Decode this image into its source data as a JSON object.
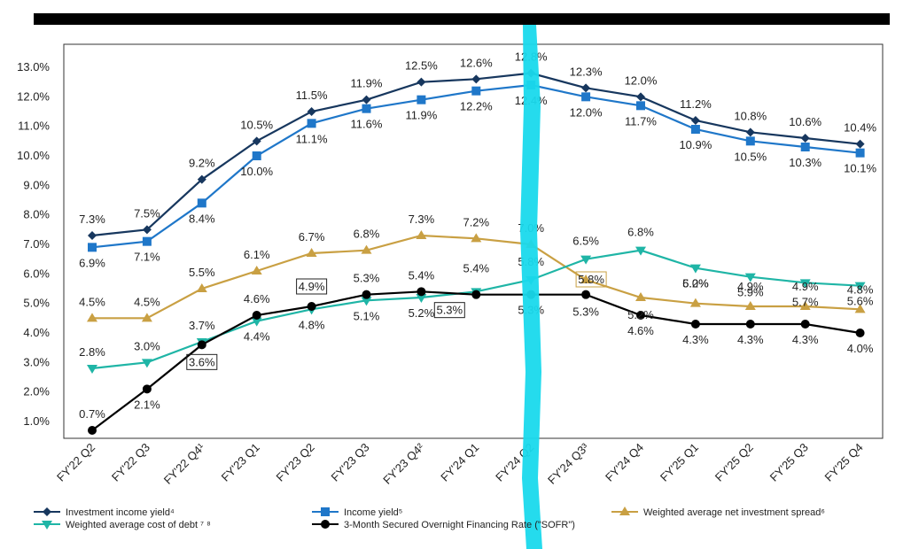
{
  "chart_data": {
    "type": "line",
    "title": "",
    "xlabel": "",
    "ylabel": "",
    "categories": [
      "FY'22 Q2",
      "FY'22 Q3",
      "FY'22 Q4¹",
      "FY'23 Q1",
      "FY'23 Q2",
      "FY'23 Q3",
      "FY'23 Q4²",
      "FY'24 Q1",
      "FY'24 Q2",
      "FY'24 Q3³",
      "FY'24 Q4",
      "FY'25 Q1",
      "FY'25 Q2",
      "FY'25 Q3",
      "FY'25 Q4"
    ],
    "yticks": [
      "1.0%",
      "2.0%",
      "3.0%",
      "4.0%",
      "5.0%",
      "6.0%",
      "7.0%",
      "8.0%",
      "9.0%",
      "10.0%",
      "11.0%",
      "12.0%",
      "13.0%"
    ],
    "ylim": [
      1.0,
      13.0
    ],
    "grid": false,
    "legend_position": "bottom",
    "series": [
      {
        "name": "Investment income yield⁴",
        "color": "#17375e",
        "marker": "diamond",
        "values": [
          7.3,
          7.5,
          9.2,
          10.5,
          11.5,
          11.9,
          12.5,
          12.6,
          12.8,
          12.3,
          12.0,
          11.2,
          10.8,
          10.6,
          10.4
        ],
        "labels": [
          "7.3%",
          "7.5%",
          "9.2%",
          "10.5%",
          "11.5%",
          "11.9%",
          "12.5%",
          "12.6%",
          "12.8%",
          "12.3%",
          "12.0%",
          "11.2%",
          "10.8%",
          "10.6%",
          "10.4%"
        ]
      },
      {
        "name": "Income yield⁵",
        "color": "#1f77c9",
        "marker": "square",
        "values": [
          6.9,
          7.1,
          8.4,
          10.0,
          11.1,
          11.6,
          11.9,
          12.2,
          12.4,
          12.0,
          11.7,
          10.9,
          10.5,
          10.3,
          10.1
        ],
        "labels": [
          "6.9%",
          "7.1%",
          "8.4%",
          "10.0%",
          "11.1%",
          "11.6%",
          "11.9%",
          "12.2%",
          "12.4%",
          "12.0%",
          "11.7%",
          "10.9%",
          "10.5%",
          "10.3%",
          "10.1%"
        ]
      },
      {
        "name": "Weighted average net investment spread⁶",
        "color": "#c9a043",
        "marker": "triangle-up",
        "values": [
          4.5,
          4.5,
          5.5,
          6.1,
          6.7,
          6.8,
          7.3,
          7.2,
          7.0,
          5.8,
          5.2,
          5.0,
          4.9,
          4.9,
          4.8
        ],
        "labels": [
          "4.5%",
          "4.5%",
          "5.5%",
          "6.1%",
          "6.7%",
          "6.8%",
          "7.3%",
          "7.2%",
          "7.0%",
          "5.8%",
          "5.2%",
          "5.0%",
          "4.9%",
          "4.9%",
          "4.8%"
        ]
      },
      {
        "name": "Weighted average cost of debt ⁷ ⁸",
        "color": "#1fb5a6",
        "marker": "triangle-down",
        "values": [
          2.8,
          3.0,
          3.7,
          4.4,
          4.8,
          5.1,
          5.2,
          5.4,
          5.8,
          6.5,
          6.8,
          6.2,
          5.9,
          5.7,
          5.6
        ],
        "labels": [
          "2.8%",
          "3.0%",
          "3.7%",
          "4.4%",
          "4.8%",
          "5.1%",
          "5.2%",
          "5.4%",
          "5.8%",
          "6.5%",
          "6.8%",
          "6.2%",
          "5.9%",
          "5.7%",
          "5.6%"
        ]
      },
      {
        "name": "3-Month Secured Overnight Financing Rate (\"SOFR\")",
        "color": "#000000",
        "marker": "circle",
        "values": [
          0.7,
          2.1,
          3.6,
          4.6,
          4.9,
          5.3,
          5.4,
          5.3,
          5.3,
          5.3,
          4.6,
          4.3,
          4.3,
          4.3,
          4.0
        ],
        "labels": [
          "0.7%",
          "2.1%",
          "3.6%",
          "4.6%",
          "4.9%",
          "5.3%",
          "5.4%",
          "5.3%",
          "5.3%",
          "5.3%",
          "4.6%",
          "4.3%",
          "4.3%",
          "4.3%",
          "4.0%"
        ]
      }
    ]
  }
}
